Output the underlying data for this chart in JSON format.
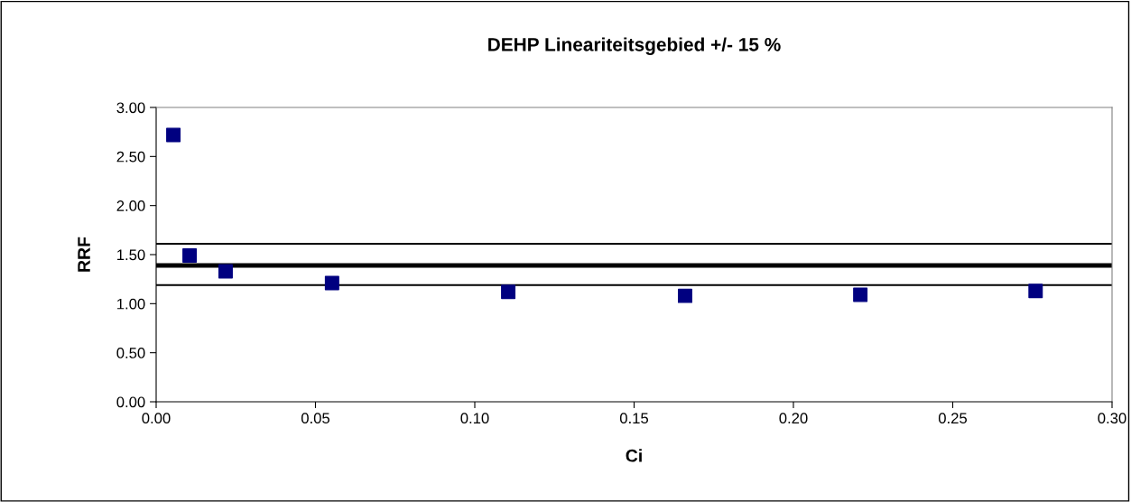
{
  "chart_data": {
    "type": "scatter",
    "title": "DEHP Lineariteitsgebied +/- 15 %",
    "xlabel": "Ci",
    "ylabel": "RRF",
    "x": [
      0.0054,
      0.0105,
      0.0218,
      0.0552,
      0.1105,
      0.166,
      0.221,
      0.276
    ],
    "series": [
      {
        "color": "#000080",
        "values": [
          2.72,
          1.49,
          1.33,
          1.21,
          1.12,
          1.08,
          1.09,
          1.13
        ]
      }
    ],
    "marker": "square",
    "xlim": [
      0,
      0.3
    ],
    "xticks": [
      {
        "value": 0,
        "label": "0.00"
      },
      {
        "value": 0.05,
        "label": "0.05"
      },
      {
        "value": 0.1,
        "label": "0.10"
      },
      {
        "value": 0.15,
        "label": "0.15"
      },
      {
        "value": 0.2,
        "label": "0.20"
      },
      {
        "value": 0.25,
        "label": "0.25"
      },
      {
        "value": 0.3,
        "label": "0.30"
      }
    ],
    "ylim": [
      0,
      3
    ],
    "yticks": [
      {
        "value": 0,
        "label": "0.00"
      },
      {
        "value": 0.5,
        "label": "0.50"
      },
      {
        "value": 1,
        "label": "1.00"
      },
      {
        "value": 1.5,
        "label": "1.50"
      },
      {
        "value": 2,
        "label": "2.00"
      },
      {
        "value": 2.5,
        "label": "2.50"
      },
      {
        "value": 3,
        "label": "3.00"
      }
    ],
    "ref_lines": [
      {
        "axis": "y",
        "value": 1.61,
        "color": "#000000"
      },
      {
        "axis": "y",
        "value": 1.39,
        "color": "#000000"
      },
      {
        "axis": "y",
        "value": 1.19,
        "color": "#000000"
      }
    ],
    "grid": false,
    "legend": false
  }
}
